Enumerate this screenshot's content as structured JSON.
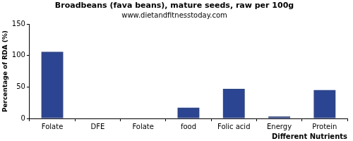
{
  "chart_data": {
    "type": "bar",
    "title": "Broadbeans (fava beans), mature seeds, raw per 100g",
    "subtitle": "www.dietandfitnesstoday.com",
    "x_label": "Different Nutrients",
    "y_label": "Percentage of RDA (%)",
    "categories": [
      "Folate",
      "DFE",
      "Folate",
      "food",
      "Folic acid",
      "Energy",
      "Protein"
    ],
    "values": [
      106,
      0,
      0,
      17,
      47,
      3,
      45
    ],
    "color": "#2b4593",
    "ylim": [
      0,
      150
    ],
    "yticks": [
      0,
      50,
      100,
      150
    ],
    "grid": false
  }
}
